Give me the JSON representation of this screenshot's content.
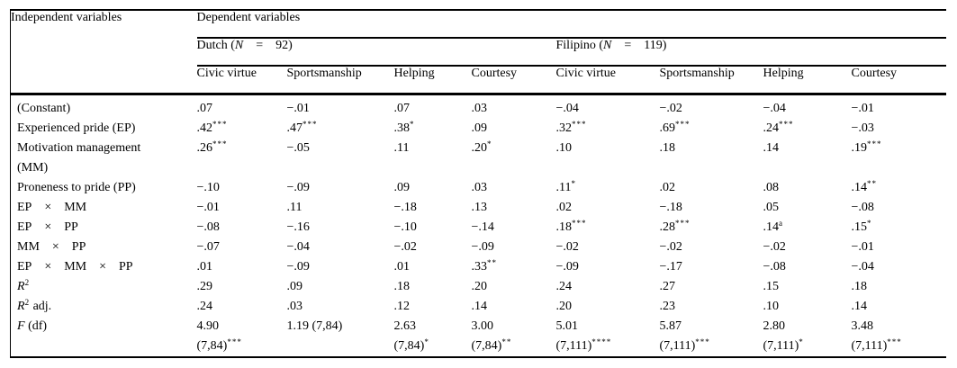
{
  "header": {
    "independent_label": "Independent variables",
    "dependent_label": "Dependent variables",
    "groups": [
      {
        "pre": "Dutch (",
        "n": "N",
        "rest": "    =    92)"
      },
      {
        "pre": "Filipino (",
        "n": "N",
        "rest": "    =    119)"
      }
    ],
    "columns": [
      "Civic virtue",
      "Sportsmanship",
      "Helping",
      "Courtesy",
      "Civic virtue",
      "Sportsmanship",
      "Helping",
      "Courtesy"
    ]
  },
  "colors": {
    "rule": "#000000",
    "text": "#000000",
    "background": "#ffffff"
  },
  "table": {
    "rows": [
      {
        "label": {
          "text": "(Constant)"
        },
        "cells": [
          {
            "v": ".07"
          },
          {
            "v": "−.01"
          },
          {
            "v": ".07"
          },
          {
            "v": ".03"
          },
          {
            "v": "−.04"
          },
          {
            "v": "−.02"
          },
          {
            "v": "−.04"
          },
          {
            "v": "−.01"
          }
        ]
      },
      {
        "label": {
          "text": "Experienced pride (EP)"
        },
        "cells": [
          {
            "v": ".42",
            "s": "***"
          },
          {
            "v": ".47",
            "s": "***"
          },
          {
            "v": ".38",
            "s": "*"
          },
          {
            "v": ".09"
          },
          {
            "v": ".32",
            "s": "***"
          },
          {
            "v": ".69",
            "s": "***"
          },
          {
            "v": ".24",
            "s": "***"
          },
          {
            "v": "−.03"
          }
        ]
      },
      {
        "label": {
          "text": "Motivation management",
          "line2": "(MM)"
        },
        "cells": [
          {
            "v": ".26",
            "s": "***"
          },
          {
            "v": "−.05"
          },
          {
            "v": ".11"
          },
          {
            "v": ".20",
            "s": "*"
          },
          {
            "v": ".10"
          },
          {
            "v": ".18"
          },
          {
            "v": ".14"
          },
          {
            "v": ".19",
            "s": "***"
          }
        ]
      },
      {
        "label": {
          "text": "Proneness to pride (PP)"
        },
        "cells": [
          {
            "v": "−.10"
          },
          {
            "v": "−.09"
          },
          {
            "v": ".09"
          },
          {
            "v": ".03"
          },
          {
            "v": ".11",
            "s": "*"
          },
          {
            "v": ".02"
          },
          {
            "v": ".08"
          },
          {
            "v": ".14",
            "s": "**"
          }
        ]
      },
      {
        "label": {
          "text": "EP    ×    MM"
        },
        "cells": [
          {
            "v": "−.01"
          },
          {
            "v": ".11"
          },
          {
            "v": "−.18"
          },
          {
            "v": ".13"
          },
          {
            "v": ".02"
          },
          {
            "v": "−.18"
          },
          {
            "v": ".05"
          },
          {
            "v": "−.08"
          }
        ]
      },
      {
        "label": {
          "text": "EP    ×    PP"
        },
        "cells": [
          {
            "v": "−.08"
          },
          {
            "v": "−.16"
          },
          {
            "v": "−.10"
          },
          {
            "v": "−.14"
          },
          {
            "v": ".18",
            "s": "***"
          },
          {
            "v": ".28",
            "s": "***"
          },
          {
            "v": ".14",
            "s": "a"
          },
          {
            "v": ".15",
            "s": "*"
          }
        ]
      },
      {
        "label": {
          "text": "MM    ×    PP"
        },
        "cells": [
          {
            "v": "−.07"
          },
          {
            "v": "−.04"
          },
          {
            "v": "−.02"
          },
          {
            "v": "−.09"
          },
          {
            "v": "−.02"
          },
          {
            "v": "−.02"
          },
          {
            "v": "−.02"
          },
          {
            "v": "−.01"
          }
        ]
      },
      {
        "label": {
          "text": "EP    ×    MM    ×    PP"
        },
        "cells": [
          {
            "v": ".01"
          },
          {
            "v": "−.09"
          },
          {
            "v": ".01"
          },
          {
            "v": ".33",
            "s": "**"
          },
          {
            "v": "−.09"
          },
          {
            "v": "−.17"
          },
          {
            "v": "−.08"
          },
          {
            "v": "−.04"
          }
        ]
      },
      {
        "label": {
          "italic": "R",
          "sup": "2"
        },
        "cells": [
          {
            "v": ".29"
          },
          {
            "v": ".09"
          },
          {
            "v": ".18"
          },
          {
            "v": ".20"
          },
          {
            "v": ".24"
          },
          {
            "v": ".27"
          },
          {
            "v": ".15"
          },
          {
            "v": ".18"
          }
        ]
      },
      {
        "label": {
          "italic": "R",
          "sup": "2",
          "text": " adj."
        },
        "cells": [
          {
            "v": ".24"
          },
          {
            "v": ".03"
          },
          {
            "v": ".12"
          },
          {
            "v": ".14"
          },
          {
            "v": ".20"
          },
          {
            "v": ".23"
          },
          {
            "v": ".10"
          },
          {
            "v": ".14"
          }
        ]
      },
      {
        "label": {
          "italic": "F",
          "text": " (df)"
        },
        "cells": [
          {
            "v": "4.90",
            "l2": "(7,84)",
            "s": "***"
          },
          {
            "v": "1.19 (7,84)"
          },
          {
            "v": "2.63",
            "l2": "(7,84)",
            "s": "*"
          },
          {
            "v": "3.00",
            "l2": "(7,84)",
            "s": "**"
          },
          {
            "v": "5.01",
            "l2": "(7,111)",
            "s": "****"
          },
          {
            "v": "5.87",
            "l2": "(7,111)",
            "s": "***"
          },
          {
            "v": "2.80",
            "l2": "(7,111)",
            "s": "*"
          },
          {
            "v": "3.48",
            "l2": "(7,111)",
            "s": "***"
          }
        ]
      }
    ]
  }
}
